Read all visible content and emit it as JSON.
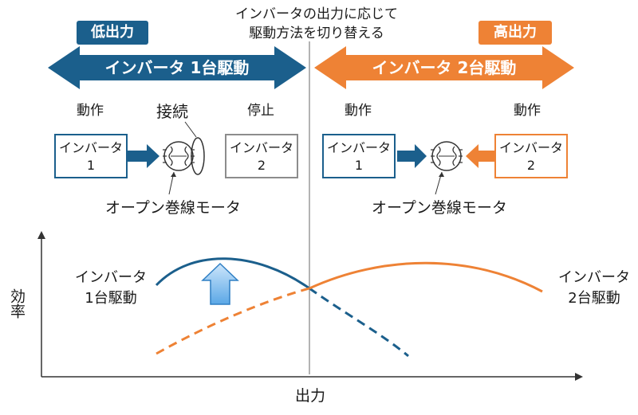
{
  "header": {
    "description_line1": "インバータの出力に応じて",
    "description_line2": "駆動方法を切り替える"
  },
  "low_mode": {
    "badge": "低出力",
    "arrow_label": "インバータ 1台駆動",
    "inverter1_state": "動作",
    "connection_label": "接続",
    "inverter2_state": "停止",
    "inverter1_line1": "インバータ",
    "inverter1_line2": "1",
    "inverter2_line1": "インバータ",
    "inverter2_line2": "2",
    "motor_label": "オープン巻線モータ"
  },
  "high_mode": {
    "badge": "高出力",
    "arrow_label": "インバータ 2台駆動",
    "inverter1_state": "動作",
    "inverter2_state": "動作",
    "inverter1_line1": "インバータ",
    "inverter1_line2": "1",
    "inverter2_line1": "インバータ",
    "inverter2_line2": "2",
    "motor_label": "オープン巻線モータ"
  },
  "graph": {
    "y_axis_label": "効率",
    "x_axis_label": "出力",
    "curve1_label_line1": "インバータ",
    "curve1_label_line2": "1台駆動",
    "curve2_label_line1": "インバータ",
    "curve2_label_line2": "2台駆動"
  },
  "colors": {
    "blue": "#1b5f8c",
    "orange": "#ee8235",
    "gray": "#8c8c8c",
    "light_blue": "#7cbbea"
  }
}
